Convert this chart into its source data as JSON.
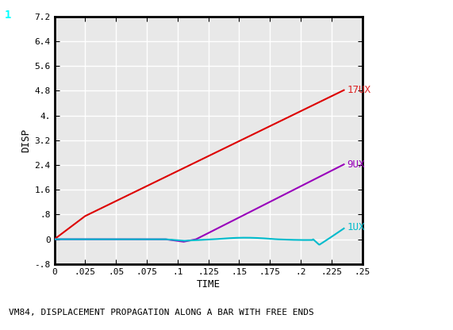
{
  "title": "VM84, DISPLACEMENT PROPAGATION ALONG A BAR WITH FREE ENDS",
  "xlabel": "TIME",
  "ylabel": "DISP",
  "corner_label": "1",
  "xlim": [
    0,
    0.25
  ],
  "ylim": [
    -0.8,
    7.2
  ],
  "xticks": [
    0,
    0.025,
    0.05,
    0.075,
    0.1,
    0.125,
    0.15,
    0.175,
    0.2,
    0.225,
    0.25
  ],
  "xtick_labels": [
    "0",
    ".025",
    ".05",
    ".075",
    ".1",
    ".125",
    ".15",
    ".175",
    ".2",
    ".225",
    ".25"
  ],
  "yticks": [
    -0.8,
    0,
    0.8,
    1.6,
    2.4,
    3.2,
    4.0,
    4.8,
    5.6,
    6.4,
    7.2
  ],
  "ytick_labels": [
    "-.8",
    "0",
    ".8",
    "1.6",
    "2.4",
    "3.2",
    "4.",
    "4.8",
    "5.6",
    "6.4",
    "7.2"
  ],
  "bg_color": "#ffffff",
  "plot_bg_color": "#e8e8e8",
  "grid_color": "#ffffff",
  "line_color_17ux": "#dd0000",
  "line_color_9ux": "#9900bb",
  "line_color_1ux": "#00bbcc",
  "label_17ux": "17UX",
  "label_9ux": "9UX",
  "label_1ux": "1UX",
  "label_color_17ux": "#dd2222",
  "label_color_9ux": "#9900bb",
  "label_color_1ux": "#00bbcc",
  "corner_color": "#00ffff",
  "font_family": "monospace",
  "tick_fontsize": 8,
  "label_fontsize": 9,
  "title_fontsize": 8
}
